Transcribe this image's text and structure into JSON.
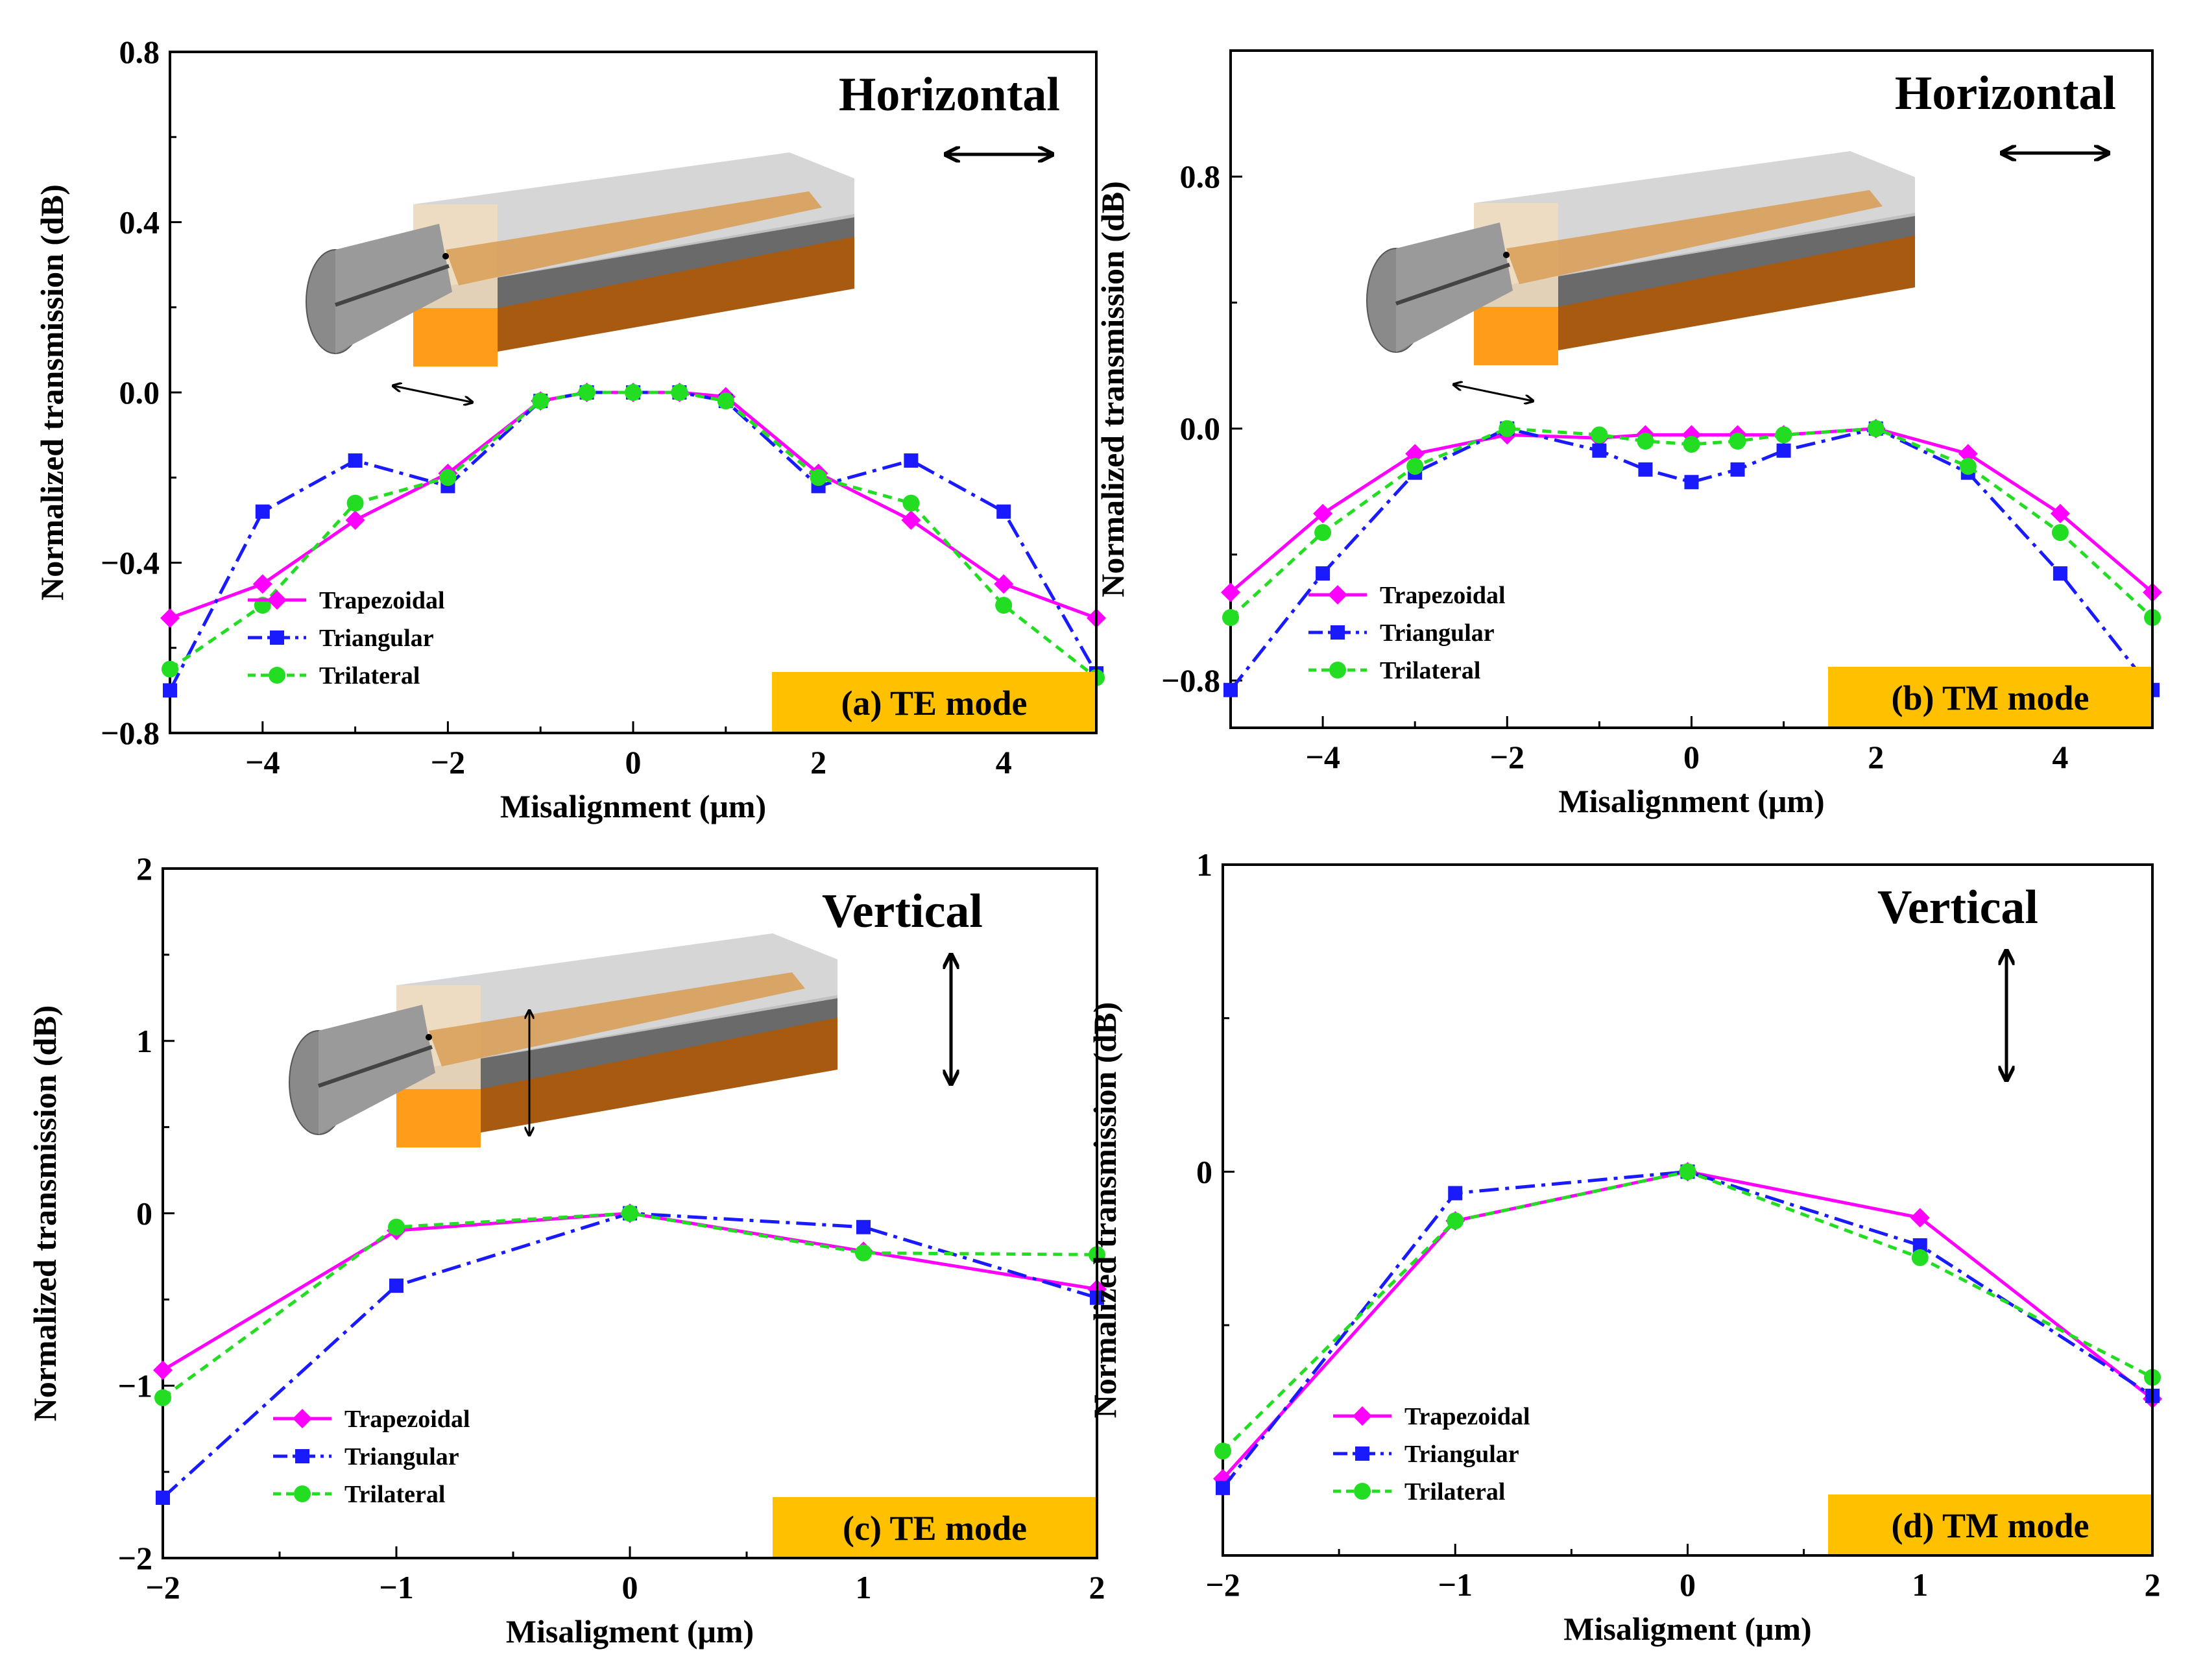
{
  "colors": {
    "trapezoidal": "#ff00ff",
    "triangular": "#1a1aff",
    "trilateral": "#22dd22",
    "mode_box": "#ffc000"
  },
  "chart_data": [
    {
      "id": "a",
      "type": "line",
      "direction_title": "Horizontal",
      "mode_label": "(a) TE mode",
      "xlabel": "Misalignment (μm)",
      "ylabel": "Normalized transmission (dB)",
      "xlim": [
        -5,
        5
      ],
      "ylim": [
        -0.8,
        0.8
      ],
      "xticks": [
        -4,
        -2,
        0,
        2,
        4
      ],
      "xtick_labels": [
        "−4",
        "−2",
        "0",
        "2",
        "4"
      ],
      "yticks": [
        -0.8,
        -0.4,
        0.0,
        0.4,
        0.8
      ],
      "ytick_labels": [
        "−0.8",
        "−0.4",
        "0.0",
        "0.4",
        "0.8"
      ],
      "arrow": "horizontal",
      "inset": "horizontal",
      "series": [
        {
          "name": "Trapezoidal",
          "key": "trapezoidal",
          "marker": "diamond",
          "dash": "solid",
          "x": [
            -5,
            -4,
            -3,
            -2,
            -1,
            -0.5,
            0,
            0.5,
            1,
            2,
            3,
            4,
            5
          ],
          "y": [
            -0.53,
            -0.45,
            -0.3,
            -0.19,
            -0.02,
            0.0,
            0.0,
            0.0,
            -0.01,
            -0.19,
            -0.3,
            -0.45,
            -0.53
          ]
        },
        {
          "name": "Triangular",
          "key": "triangular",
          "marker": "square",
          "dash": "dashdot",
          "x": [
            -5,
            -4,
            -3,
            -2,
            -1,
            -0.5,
            0,
            0.5,
            1,
            2,
            3,
            4,
            5
          ],
          "y": [
            -0.7,
            -0.28,
            -0.16,
            -0.22,
            -0.02,
            0.0,
            0.0,
            0.0,
            -0.02,
            -0.22,
            -0.16,
            -0.28,
            -0.66
          ]
        },
        {
          "name": "Trilateral",
          "key": "trilateral",
          "marker": "circle",
          "dash": "dash",
          "x": [
            -5,
            -4,
            -3,
            -2,
            -1,
            -0.5,
            0,
            0.5,
            1,
            2,
            3,
            4,
            5
          ],
          "y": [
            -0.65,
            -0.5,
            -0.26,
            -0.2,
            -0.02,
            0.0,
            0.0,
            0.0,
            -0.02,
            -0.2,
            -0.26,
            -0.5,
            -0.67
          ]
        }
      ]
    },
    {
      "id": "b",
      "type": "line",
      "direction_title": "Horizontal",
      "mode_label": "(b) TM mode",
      "xlabel": "Misalignment (μm)",
      "ylabel": "Normalized transmission (dB)",
      "xlim": [
        -5,
        5
      ],
      "ylim": [
        -0.95,
        1.2
      ],
      "xticks": [
        -4,
        -2,
        0,
        2,
        4
      ],
      "xtick_labels": [
        "−4",
        "−2",
        "0",
        "2",
        "4"
      ],
      "yticks": [
        -0.8,
        0.0,
        0.8
      ],
      "ytick_labels": [
        "−0.8",
        "0.0",
        "0.8"
      ],
      "arrow": "horizontal",
      "inset": "horizontal",
      "series": [
        {
          "name": "Trapezoidal",
          "key": "trapezoidal",
          "marker": "diamond",
          "dash": "solid",
          "x": [
            -5,
            -4,
            -3,
            -2,
            -1,
            -0.5,
            0,
            0.5,
            1,
            2,
            3,
            4,
            5
          ],
          "y": [
            -0.52,
            -0.27,
            -0.08,
            -0.02,
            -0.03,
            -0.02,
            -0.02,
            -0.02,
            -0.02,
            0.0,
            -0.08,
            -0.27,
            -0.52
          ]
        },
        {
          "name": "Triangular",
          "key": "triangular",
          "marker": "square",
          "dash": "dashdot",
          "x": [
            -5,
            -4,
            -3,
            -2,
            -1,
            -0.5,
            0,
            0.5,
            1,
            2,
            3,
            4,
            5
          ],
          "y": [
            -0.83,
            -0.46,
            -0.14,
            0.0,
            -0.07,
            -0.13,
            -0.17,
            -0.13,
            -0.07,
            0.0,
            -0.14,
            -0.46,
            -0.83
          ]
        },
        {
          "name": "Trilateral",
          "key": "trilateral",
          "marker": "circle",
          "dash": "dash",
          "x": [
            -5,
            -4,
            -3,
            -2,
            -1,
            -0.5,
            0,
            0.5,
            1,
            2,
            3,
            4,
            5
          ],
          "y": [
            -0.6,
            -0.33,
            -0.12,
            0.0,
            -0.02,
            -0.04,
            -0.05,
            -0.04,
            -0.02,
            0.0,
            -0.12,
            -0.33,
            -0.6
          ]
        }
      ]
    },
    {
      "id": "c",
      "type": "line",
      "direction_title": "Vertical",
      "mode_label": "(c) TE mode",
      "xlabel": "Misaligment (μm)",
      "ylabel": "Normalized transmission (dB)",
      "xlim": [
        -2,
        2
      ],
      "ylim": [
        -2,
        2
      ],
      "xticks": [
        -2,
        -1,
        0,
        1,
        2
      ],
      "xtick_labels": [
        "−2",
        "−1",
        "0",
        "1",
        "2"
      ],
      "yticks": [
        -2,
        -1,
        0,
        1,
        2
      ],
      "ytick_labels": [
        "−2",
        "−1",
        "0",
        "1",
        "2"
      ],
      "arrow": "vertical",
      "inset": "vertical",
      "series": [
        {
          "name": "Trapezoidal",
          "key": "trapezoidal",
          "marker": "diamond",
          "dash": "solid",
          "x": [
            -2,
            -1,
            0,
            1,
            2
          ],
          "y": [
            -0.91,
            -0.1,
            0.0,
            -0.22,
            -0.44
          ]
        },
        {
          "name": "Triangular",
          "key": "triangular",
          "marker": "square",
          "dash": "dashdot",
          "x": [
            -2,
            -1,
            0,
            1,
            2
          ],
          "y": [
            -1.65,
            -0.42,
            0.0,
            -0.08,
            -0.49
          ]
        },
        {
          "name": "Trilateral",
          "key": "trilateral",
          "marker": "circle",
          "dash": "dash",
          "x": [
            -2,
            -1,
            0,
            1,
            2
          ],
          "y": [
            -1.07,
            -0.08,
            0.0,
            -0.23,
            -0.24
          ]
        }
      ]
    },
    {
      "id": "d",
      "type": "line",
      "direction_title": "Vertical",
      "mode_label": "(d) TM mode",
      "xlabel": "Misaligment (μm)",
      "ylabel": "Normalized transmission (dB)",
      "xlim": [
        -2,
        2
      ],
      "ylim": [
        -1.25,
        1
      ],
      "xticks": [
        -2,
        -1,
        0,
        1,
        2
      ],
      "xtick_labels": [
        "−2",
        "−1",
        "0",
        "1",
        "2"
      ],
      "yticks": [
        0,
        1
      ],
      "ytick_labels": [
        "0",
        "1"
      ],
      "arrow": "vertical",
      "inset": "none",
      "series": [
        {
          "name": "Trapezoidal",
          "key": "trapezoidal",
          "marker": "diamond",
          "dash": "solid",
          "x": [
            -2,
            -1,
            0,
            1,
            2
          ],
          "y": [
            -1.0,
            -0.16,
            0.0,
            -0.15,
            -0.74
          ]
        },
        {
          "name": "Triangular",
          "key": "triangular",
          "marker": "square",
          "dash": "dashdot",
          "x": [
            -2,
            -1,
            0,
            1,
            2
          ],
          "y": [
            -1.03,
            -0.07,
            0.0,
            -0.24,
            -0.73
          ]
        },
        {
          "name": "Trilateral",
          "key": "trilateral",
          "marker": "circle",
          "dash": "dash",
          "x": [
            -2,
            -1,
            0,
            1,
            2
          ],
          "y": [
            -0.91,
            -0.16,
            0.0,
            -0.28,
            -0.67
          ]
        }
      ]
    }
  ]
}
